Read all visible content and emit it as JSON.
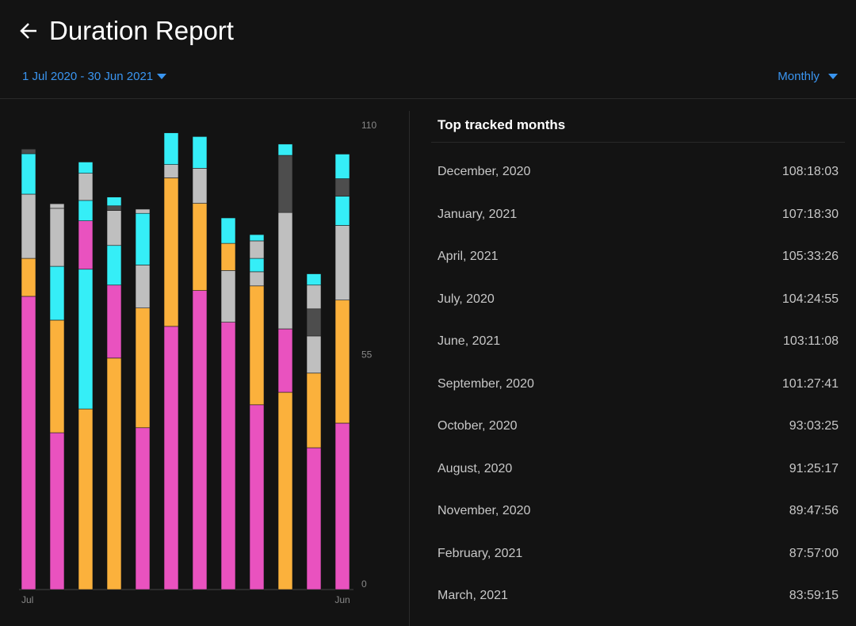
{
  "header": {
    "title": "Duration Report",
    "date_range": "1 Jul 2020 - 30 Jun 2021",
    "period": "Monthly"
  },
  "chart_data": {
    "type": "stacked-bar",
    "categories": [
      "Jul",
      null,
      null,
      null,
      null,
      null,
      null,
      null,
      null,
      null,
      null,
      "Jun"
    ],
    "ylim": [
      0,
      110
    ],
    "yticks": [
      0,
      55,
      110
    ],
    "grid": false,
    "series": [
      {
        "values": [
          70.3,
          37.6,
          43.3,
          55.5,
          38.8,
          63.1,
          71.7,
          64.1,
          44.3,
          47.3,
          34,
          39.9
        ],
        "colors": [
          "#e952bf",
          "#e952bf",
          "#fbb13c",
          "#fbb13c",
          "#e952bf",
          "#e952bf",
          "#e952bf",
          "#e952bf",
          "#e952bf",
          "#fbb13c",
          "#e952bf",
          "#e952bf"
        ]
      },
      {
        "values": [
          9.1,
          27,
          33.5,
          17.5,
          28.7,
          35.6,
          20.9,
          12.4,
          28.5,
          15.2,
          17.9,
          29.5
        ],
        "colors": [
          "#fbb13c",
          "#fbb13c",
          "#35eef7",
          "#e952bf",
          "#fbb13c",
          "#fbb13c",
          "#fbb13c",
          "#bfbfbf",
          "#fbb13c",
          "#e952bf",
          "#fbb13c",
          "#fbb13c"
        ]
      },
      {
        "values": [
          15.4,
          12.9,
          11.6,
          9.5,
          10.3,
          3.2,
          8.4,
          6.5,
          3.4,
          27.9,
          8.9,
          17.9
        ],
        "colors": [
          "#bfbfbf",
          "#35eef7",
          "#e952bf",
          "#35eef7",
          "#bfbfbf",
          "#bfbfbf",
          "#bfbfbf",
          "#fbb13c",
          "#bfbfbf",
          "#bfbfbf",
          "#bfbfbf",
          "#bfbfbf"
        ]
      },
      {
        "values": [
          9.7,
          13.9,
          4.9,
          8.4,
          12.4,
          7.6,
          7.6,
          6.1,
          3.2,
          13.7,
          6.5,
          7
        ],
        "colors": [
          "#35eef7",
          "#bfbfbf",
          "#35eef7",
          "#bfbfbf",
          "#35eef7",
          "#35eef7",
          "#35eef7",
          "#35eef7",
          "#35eef7",
          "#4d4d4d",
          "#4d4d4d",
          "#35eef7"
        ]
      },
      {
        "values": [
          1.1,
          1.1,
          6.5,
          1.1,
          1,
          null,
          null,
          null,
          4.2,
          2.7,
          5.7,
          4.2
        ],
        "colors": [
          "#4d4d4d",
          "#bfbfbf",
          "#bfbfbf",
          "#4d4d4d",
          "#bfbfbf",
          null,
          null,
          null,
          "#bfbfbf",
          "#35eef7",
          "#bfbfbf",
          "#4d4d4d"
        ]
      },
      {
        "values": [
          null,
          null,
          2.7,
          2.1,
          null,
          null,
          null,
          null,
          1.5,
          null,
          2.7,
          5.9
        ],
        "colors": [
          null,
          null,
          "#35eef7",
          "#35eef7",
          null,
          null,
          null,
          null,
          "#35eef7",
          null,
          "#35eef7",
          "#35eef7"
        ]
      }
    ]
  },
  "top_list": {
    "title": "Top tracked months",
    "rows": [
      {
        "month": "December, 2020",
        "duration": "108:18:03"
      },
      {
        "month": "January, 2021",
        "duration": "107:18:30"
      },
      {
        "month": "April, 2021",
        "duration": "105:33:26"
      },
      {
        "month": "July, 2020",
        "duration": "104:24:55"
      },
      {
        "month": "June, 2021",
        "duration": "103:11:08"
      },
      {
        "month": "September, 2020",
        "duration": "101:27:41"
      },
      {
        "month": "October, 2020",
        "duration": "93:03:25"
      },
      {
        "month": "August, 2020",
        "duration": "91:25:17"
      },
      {
        "month": "November, 2020",
        "duration": "89:47:56"
      },
      {
        "month": "February, 2021",
        "duration": "87:57:00"
      },
      {
        "month": "March, 2021",
        "duration": "83:59:15"
      }
    ]
  }
}
